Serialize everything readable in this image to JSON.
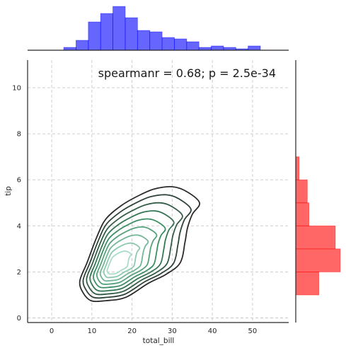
{
  "chart_data": {
    "type": "jointplot-kde",
    "xlabel": "total_bill",
    "ylabel": "tip",
    "xlim": [
      -6,
      59
    ],
    "ylim": [
      -0.2,
      11.2
    ],
    "xticks": [
      0,
      10,
      20,
      30,
      40,
      50
    ],
    "yticks": [
      0,
      2,
      4,
      6,
      8,
      10
    ],
    "grid": true,
    "annotation": "spearmanr = 0.68; p = 2.5e-34",
    "annotation_placement": "top-right",
    "kde_center": [
      15.5,
      2.2
    ],
    "kde_levels": 9,
    "kde_outer_color": "#2b2b2b",
    "kde_inner_color": "#a8dcc8",
    "kde_mid_color": "#3b8f63",
    "marginal_x": {
      "color": "#0000ff",
      "bin_edges": [
        3,
        6.06,
        9.12,
        12.18,
        15.24,
        18.3,
        21.36,
        24.42,
        27.48,
        30.54,
        33.6,
        36.66,
        39.72,
        42.78,
        45.84,
        48.9,
        51.96
      ],
      "counts": [
        2,
        7,
        20,
        26,
        31,
        23,
        14,
        13,
        9,
        8,
        6,
        2,
        3,
        2,
        1,
        3
      ]
    },
    "marginal_y": {
      "color": "#ff0000",
      "bin_edges": [
        1.0,
        2.0,
        3.0,
        4.0,
        5.0,
        6.0,
        7.0
      ],
      "counts": [
        14,
        27,
        24,
        8,
        7,
        2
      ]
    }
  }
}
